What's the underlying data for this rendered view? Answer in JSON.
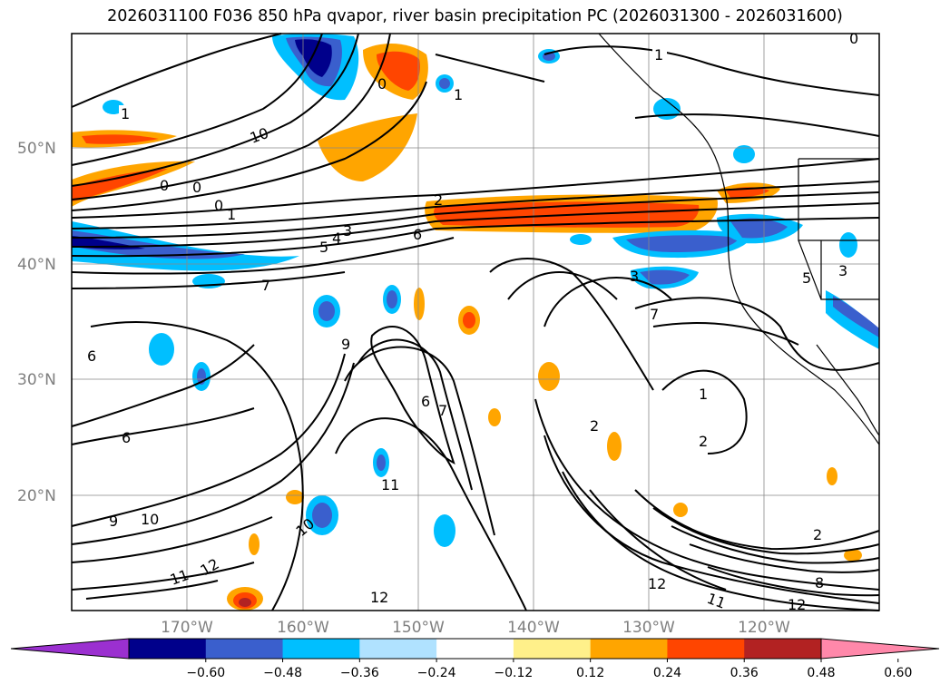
{
  "title": "2026031100 F036 850 hPa qvapor, river basin precipitation PC (2026031300 - 2026031600)",
  "map": {
    "lat_labels": [
      "50°N",
      "40°N",
      "30°N",
      "20°N"
    ],
    "lon_labels": [
      "170°W",
      "160°W",
      "150°W",
      "140°W",
      "130°W",
      "120°W"
    ],
    "contour_labels": [
      {
        "text": "1"
      },
      {
        "text": "1"
      },
      {
        "text": "10"
      },
      {
        "text": "0"
      },
      {
        "text": "0"
      },
      {
        "text": "0"
      },
      {
        "text": "0"
      },
      {
        "text": "1"
      },
      {
        "text": "2"
      },
      {
        "text": "3"
      },
      {
        "text": "4"
      },
      {
        "text": "5"
      },
      {
        "text": "6"
      },
      {
        "text": "7"
      },
      {
        "text": "9"
      },
      {
        "text": "6"
      },
      {
        "text": "6"
      },
      {
        "text": "7"
      },
      {
        "text": "11"
      },
      {
        "text": "10"
      },
      {
        "text": "9"
      },
      {
        "text": "10"
      },
      {
        "text": "11"
      },
      {
        "text": "12"
      },
      {
        "text": "12"
      },
      {
        "text": "12"
      },
      {
        "text": "11"
      },
      {
        "text": "12"
      },
      {
        "text": "8"
      },
      {
        "text": "2"
      },
      {
        "text": "2"
      },
      {
        "text": "1"
      },
      {
        "text": "2"
      },
      {
        "text": "3"
      },
      {
        "text": "5"
      },
      {
        "text": "3"
      },
      {
        "text": "1"
      },
      {
        "text": "0"
      },
      {
        "text": "6"
      },
      {
        "text": "7"
      }
    ]
  },
  "colorbar": {
    "ticks": [
      "−0.60",
      "−0.48",
      "−0.36",
      "−0.24",
      "−0.12",
      "0.12",
      "0.24",
      "0.36",
      "0.48",
      "0.60"
    ],
    "colors": [
      "#9b30d0",
      "#00008b",
      "#3a5fcd",
      "#00bfff",
      "#b0e2ff",
      "#ffffff",
      "#fff08a",
      "#ffa500",
      "#ff4500",
      "#b22222",
      "#ff88aa"
    ]
  }
}
